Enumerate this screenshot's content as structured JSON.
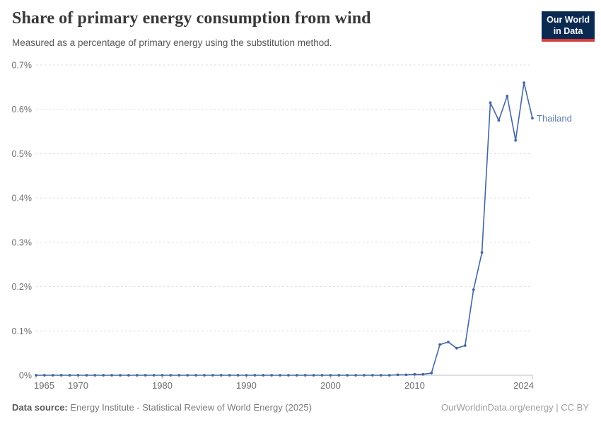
{
  "header": {
    "title": "Share of primary energy consumption from wind",
    "subtitle": "Measured as a percentage of primary energy using the substitution method.",
    "logo": {
      "line1": "Our World",
      "line2": "in Data",
      "bg_color": "#0b2a52",
      "accent_color": "#d93a3a"
    }
  },
  "footer": {
    "source_label": "Data source:",
    "source_text": "Energy Institute - Statistical Review of World Energy (2025)",
    "credit": "OurWorldinData.org/energy | CC BY"
  },
  "chart_data": {
    "type": "line",
    "title": "Share of primary energy consumption from wind",
    "subtitle": "Measured as a percentage of primary energy using the substitution method.",
    "xlabel": "",
    "ylabel": "",
    "unit": "%",
    "x_range": [
      1965,
      2024
    ],
    "y_range": [
      0,
      0.7
    ],
    "grid": "horizontal-dashed",
    "legend_position": "end-of-line-label",
    "colors": {
      "line": "#4466a4",
      "series_label": "#5d7cb0",
      "gridline": "#dadada",
      "axis_line": "#c0c0c0",
      "tick_label": "#6e6e6e"
    },
    "yticks": [
      {
        "value": 0,
        "label": "0%"
      },
      {
        "value": 0.1,
        "label": "0.1%"
      },
      {
        "value": 0.2,
        "label": "0.2%"
      },
      {
        "value": 0.3,
        "label": "0.3%"
      },
      {
        "value": 0.4,
        "label": "0.4%"
      },
      {
        "value": 0.5,
        "label": "0.5%"
      },
      {
        "value": 0.6,
        "label": "0.6%"
      },
      {
        "value": 0.7,
        "label": "0.7%"
      }
    ],
    "xticks": [
      {
        "value": 1965,
        "label": "1965"
      },
      {
        "value": 1970,
        "label": "1970"
      },
      {
        "value": 1980,
        "label": "1980"
      },
      {
        "value": 1990,
        "label": "1990"
      },
      {
        "value": 2000,
        "label": "2000"
      },
      {
        "value": 2010,
        "label": "2010"
      },
      {
        "value": 2024,
        "label": "2024"
      }
    ],
    "series": [
      {
        "name": "Thailand",
        "color": "#4466a4",
        "label_color": "#5d7cb0",
        "points": [
          [
            1965,
            0
          ],
          [
            1966,
            0
          ],
          [
            1967,
            0
          ],
          [
            1968,
            0
          ],
          [
            1969,
            0
          ],
          [
            1970,
            0
          ],
          [
            1971,
            0
          ],
          [
            1972,
            0
          ],
          [
            1973,
            0
          ],
          [
            1974,
            0
          ],
          [
            1975,
            0
          ],
          [
            1976,
            0
          ],
          [
            1977,
            0
          ],
          [
            1978,
            0
          ],
          [
            1979,
            0
          ],
          [
            1980,
            0
          ],
          [
            1981,
            0
          ],
          [
            1982,
            0
          ],
          [
            1983,
            0
          ],
          [
            1984,
            0
          ],
          [
            1985,
            0
          ],
          [
            1986,
            0
          ],
          [
            1987,
            0
          ],
          [
            1988,
            0
          ],
          [
            1989,
            0
          ],
          [
            1990,
            0
          ],
          [
            1991,
            0
          ],
          [
            1992,
            0
          ],
          [
            1993,
            0
          ],
          [
            1994,
            0
          ],
          [
            1995,
            0
          ],
          [
            1996,
            0
          ],
          [
            1997,
            0
          ],
          [
            1998,
            0
          ],
          [
            1999,
            0
          ],
          [
            2000,
            0
          ],
          [
            2001,
            0
          ],
          [
            2002,
            0
          ],
          [
            2003,
            0
          ],
          [
            2004,
            0
          ],
          [
            2005,
            0
          ],
          [
            2006,
            0
          ],
          [
            2007,
            0
          ],
          [
            2008,
            0.001
          ],
          [
            2009,
            0.001
          ],
          [
            2010,
            0.002
          ],
          [
            2011,
            0.002
          ],
          [
            2012,
            0.005
          ],
          [
            2013,
            0.069
          ],
          [
            2014,
            0.075
          ],
          [
            2015,
            0.061
          ],
          [
            2016,
            0.067
          ],
          [
            2017,
            0.193
          ],
          [
            2018,
            0.277
          ],
          [
            2019,
            0.615
          ],
          [
            2020,
            0.575
          ],
          [
            2021,
            0.63
          ],
          [
            2022,
            0.53
          ],
          [
            2023,
            0.66
          ],
          [
            2024,
            0.58
          ]
        ]
      }
    ]
  }
}
